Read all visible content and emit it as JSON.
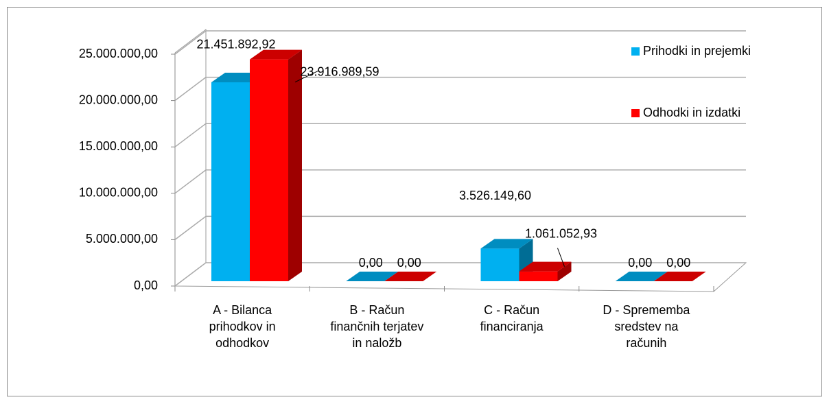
{
  "chart_data": {
    "type": "bar3d",
    "categories": [
      "A - Bilanca prihodkov in odhodkov",
      "B - Račun finančnih terjatev in naložb",
      "C - Račun financiranja",
      "D - Sprememba sredstev na računih"
    ],
    "series": [
      {
        "name": "Prihodki in prejemki",
        "color": "#00b0f0",
        "values": [
          21451892.92,
          0,
          3526149.6,
          0
        ],
        "value_labels": [
          "21.451.892,92",
          "0,00",
          "3.526.149,60",
          "0,00"
        ]
      },
      {
        "name": "Odhodki in izdatki",
        "color": "#ff0000",
        "values": [
          23916989.59,
          0,
          1061052.93,
          0
        ],
        "value_labels": [
          "23.916.989,59",
          "0,00",
          "1.061.052,93",
          "0,00"
        ]
      }
    ],
    "ylim": [
      0,
      25000000
    ],
    "yticks": [
      {
        "value": 0,
        "label": "0,00"
      },
      {
        "value": 5000000,
        "label": "5.000.000,00"
      },
      {
        "value": 10000000,
        "label": "10.000.000,00"
      },
      {
        "value": 15000000,
        "label": "15.000.000,00"
      },
      {
        "value": 20000000,
        "label": "20.000.000,00"
      },
      {
        "value": 25000000,
        "label": "25.000.000,00"
      }
    ],
    "grid": true,
    "legend": "right"
  }
}
